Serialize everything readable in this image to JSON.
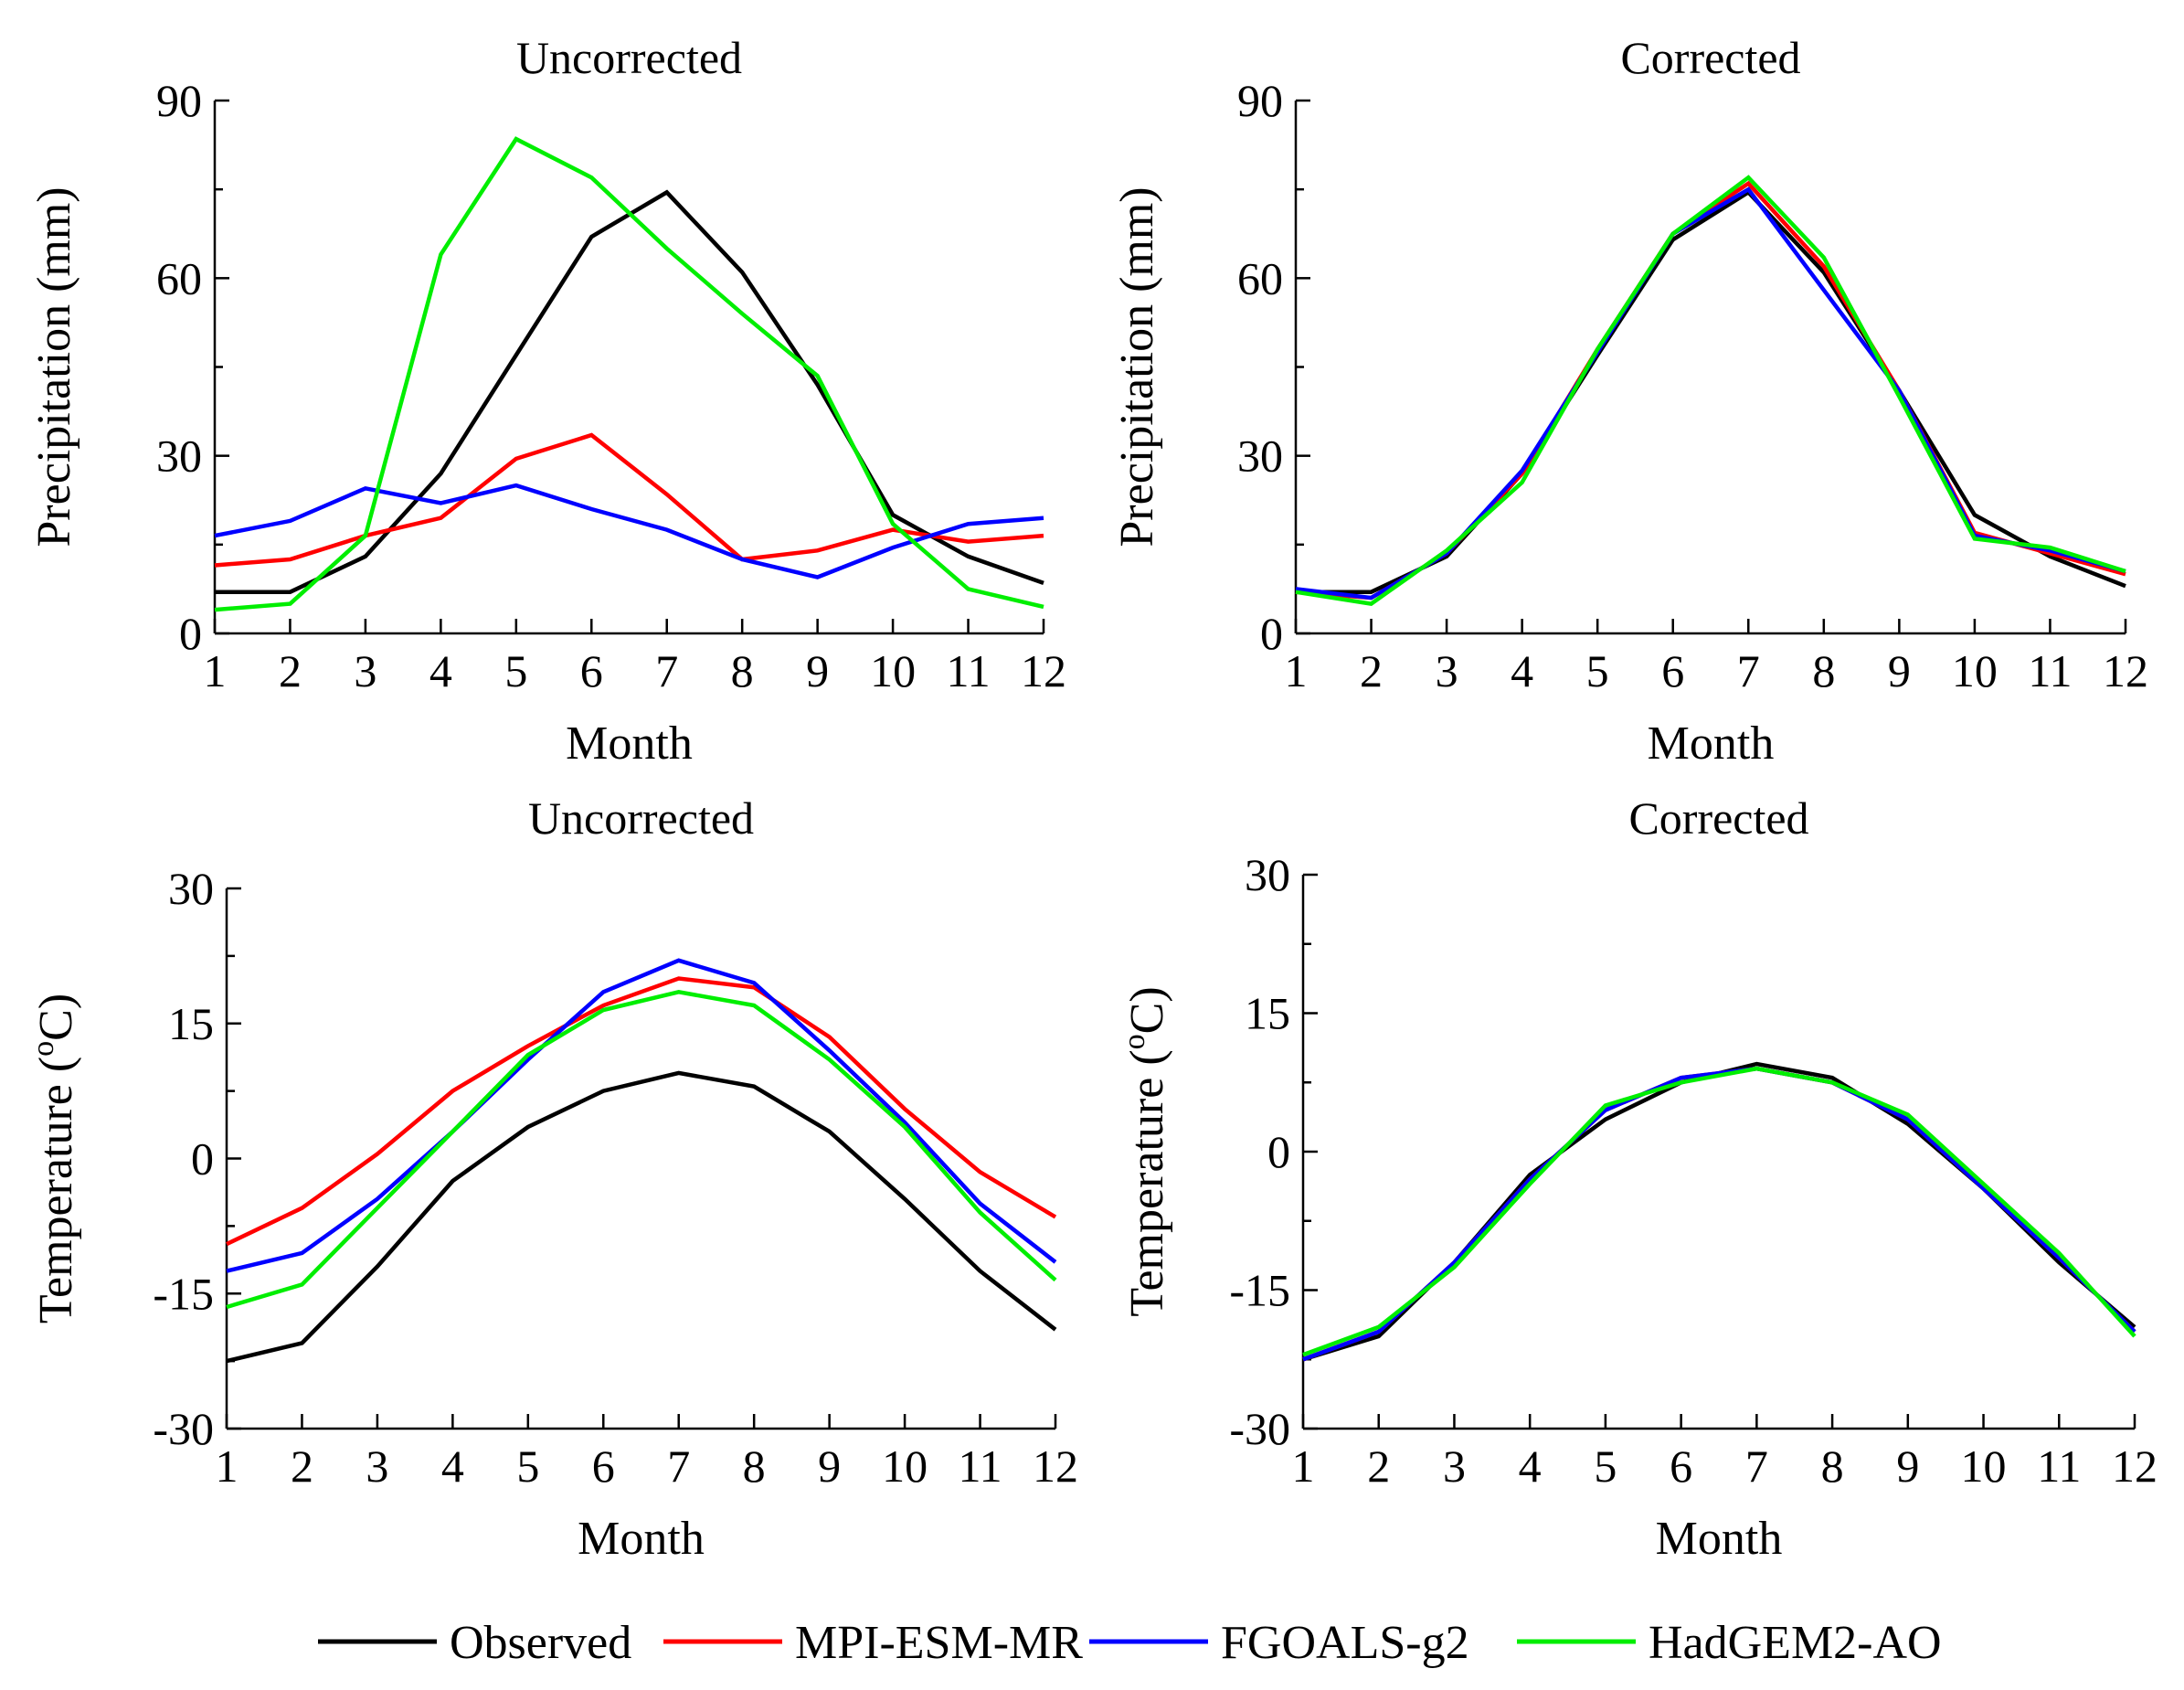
{
  "chart_data": [
    {
      "type": "line",
      "title": "Uncorrected",
      "xlabel": "Month",
      "ylabel": "Precipitation (mm)",
      "ylim": [
        0,
        90
      ],
      "yticks": [
        0,
        30,
        60,
        90
      ],
      "x": [
        1,
        2,
        3,
        4,
        5,
        6,
        7,
        8,
        9,
        10,
        11,
        12
      ],
      "series": [
        {
          "name": "Observed",
          "color": "#000000",
          "values": [
            7,
            7,
            13,
            27,
            47,
            67,
            74.5,
            61,
            42,
            20,
            13,
            8.5
          ]
        },
        {
          "name": "MPI-ESM-MR",
          "color": "#ff0000",
          "values": [
            11.5,
            12.5,
            16.5,
            19.5,
            29.5,
            33.5,
            23.5,
            12.5,
            14,
            17.5,
            15.5,
            16.5
          ]
        },
        {
          "name": "FGOALS-g2",
          "color": "#0000ff",
          "values": [
            16.5,
            19,
            24.5,
            22,
            25,
            21,
            17.5,
            12.5,
            9.5,
            14.5,
            18.5,
            19.5
          ]
        },
        {
          "name": "HadGEM2-AO",
          "color": "#00ee00",
          "values": [
            4,
            5,
            16.5,
            64,
            83.5,
            77,
            65,
            54,
            43.5,
            18.5,
            7.5,
            4.5
          ]
        }
      ]
    },
    {
      "type": "line",
      "title": "Corrected",
      "xlabel": "Month",
      "ylabel": "Precipitation (mm)",
      "ylim": [
        0,
        90
      ],
      "yticks": [
        0,
        30,
        60,
        90
      ],
      "x": [
        1,
        2,
        3,
        4,
        5,
        6,
        7,
        8,
        9,
        10,
        11,
        12
      ],
      "series": [
        {
          "name": "Observed",
          "color": "#000000",
          "values": [
            7,
            7,
            13,
            27,
            47,
            66.5,
            74.5,
            61,
            41,
            20,
            13,
            8
          ]
        },
        {
          "name": "MPI-ESM-MR",
          "color": "#ff0000",
          "values": [
            7,
            6,
            13.5,
            27,
            48,
            67.5,
            76,
            62,
            41,
            17,
            13.5,
            10
          ]
        },
        {
          "name": "FGOALS-g2",
          "color": "#0000ff",
          "values": [
            7.5,
            6,
            13.5,
            27.5,
            47.5,
            67.5,
            75,
            58,
            41,
            16.5,
            14,
            10.5
          ]
        },
        {
          "name": "HadGEM2-AO",
          "color": "#00ee00",
          "values": [
            7,
            5,
            14,
            25.5,
            48,
            67.5,
            77,
            63.5,
            40,
            16,
            14.5,
            10.5
          ]
        }
      ]
    },
    {
      "type": "line",
      "title": "Uncorrected",
      "xlabel": "Month",
      "ylabel": "Temperature (",
      "ylabel_sup": "o",
      "ylabel_tail": "C)",
      "ylim": [
        -30,
        30
      ],
      "yticks": [
        -30,
        -15,
        0,
        15,
        30
      ],
      "x": [
        1,
        2,
        3,
        4,
        5,
        6,
        7,
        8,
        9,
        10,
        11,
        12
      ],
      "series": [
        {
          "name": "Observed",
          "color": "#000000",
          "values": [
            -22.5,
            -20.5,
            -12,
            -2.5,
            3.5,
            7.5,
            9.5,
            8,
            3,
            -4.5,
            -12.5,
            -19
          ]
        },
        {
          "name": "MPI-ESM-MR",
          "color": "#ff0000",
          "values": [
            -9.5,
            -5.5,
            0.5,
            7.5,
            12.5,
            17,
            20,
            19,
            13.5,
            5.5,
            -1.5,
            -6.5
          ]
        },
        {
          "name": "FGOALS-g2",
          "color": "#0000ff",
          "values": [
            -12.5,
            -10.5,
            -4.5,
            3,
            11,
            18.5,
            22,
            19.5,
            12,
            4,
            -5,
            -11.5
          ]
        },
        {
          "name": "HadGEM2-AO",
          "color": "#00ee00",
          "values": [
            -16.5,
            -14,
            -5.5,
            3,
            11.5,
            16.5,
            18.5,
            17,
            11,
            3.5,
            -6,
            -13.5
          ]
        }
      ]
    },
    {
      "type": "line",
      "title": "Corrected",
      "xlabel": "Month",
      "ylabel": "Temperature (",
      "ylabel_sup": "o",
      "ylabel_tail": "C)",
      "ylim": [
        -30,
        30
      ],
      "yticks": [
        -30,
        -15,
        0,
        15,
        30
      ],
      "x": [
        1,
        2,
        3,
        4,
        5,
        6,
        7,
        8,
        9,
        10,
        11,
        12
      ],
      "series": [
        {
          "name": "Observed",
          "color": "#000000",
          "values": [
            -22.5,
            -20,
            -12,
            -2.5,
            3.5,
            7.5,
            9.5,
            8,
            3,
            -4,
            -12,
            -19
          ]
        },
        {
          "name": "MPI-ESM-MR",
          "color": "#ff0000",
          "values": [
            -22.5,
            -19.5,
            -12,
            -3,
            4.5,
            8,
            9,
            7.5,
            3.5,
            -4,
            -11.5,
            -19.5
          ]
        },
        {
          "name": "FGOALS-g2",
          "color": "#0000ff",
          "values": [
            -22.5,
            -19.5,
            -12,
            -3,
            4.5,
            8,
            9,
            7.5,
            3.5,
            -4,
            -11.5,
            -19.5
          ]
        },
        {
          "name": "HadGEM2-AO",
          "color": "#00ee00",
          "values": [
            -22,
            -19,
            -12.5,
            -3.5,
            5,
            7.5,
            9,
            7.5,
            4,
            -3.5,
            -11,
            -20
          ]
        }
      ]
    }
  ],
  "legend": [
    {
      "label": "Observed",
      "color": "#000000"
    },
    {
      "label": "MPI-ESM-MR",
      "color": "#ff0000"
    },
    {
      "label": "FGOALS-g2",
      "color": "#0000ff"
    },
    {
      "label": "HadGEM2-AO",
      "color": "#00ee00"
    }
  ]
}
